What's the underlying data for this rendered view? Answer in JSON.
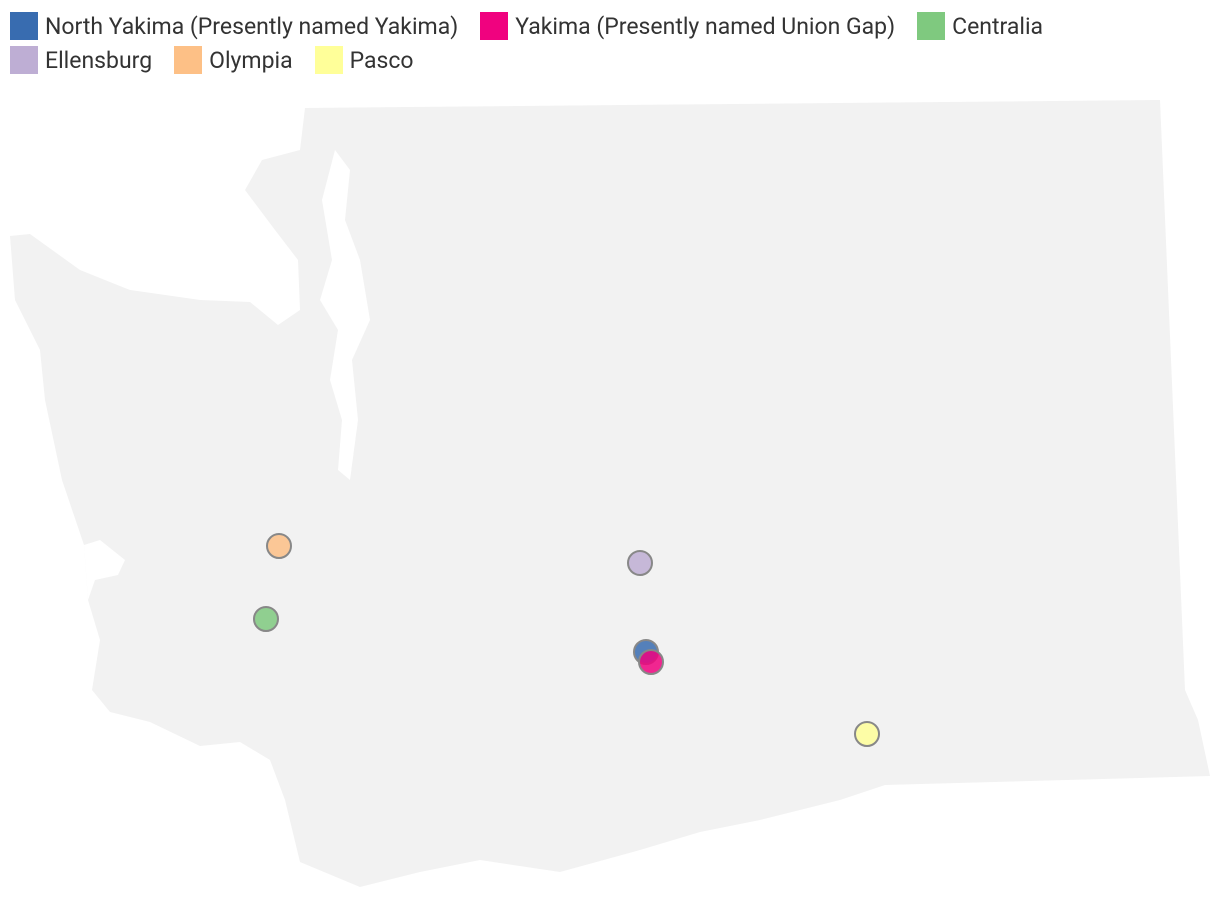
{
  "legend": {
    "items": [
      {
        "label": "North Yakima (Presently named Yakima)",
        "color": "#386cb0"
      },
      {
        "label": "Yakima (Presently named Union Gap)",
        "color": "#f0027f"
      },
      {
        "label": "Centralia",
        "color": "#7fc97f"
      },
      {
        "label": "Ellensburg",
        "color": "#beaed4"
      },
      {
        "label": "Olympia",
        "color": "#fdc086"
      },
      {
        "label": "Pasco",
        "color": "#ffff99"
      }
    ]
  }
}
